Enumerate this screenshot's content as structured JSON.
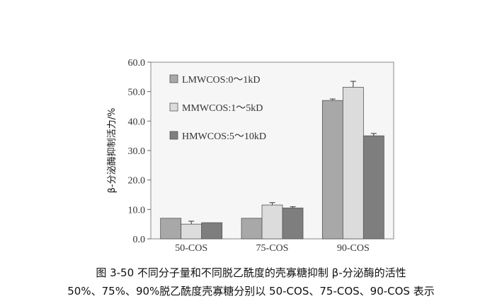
{
  "chart_data": {
    "type": "bar",
    "ylabel": "β-分泌酶抑制活力/%",
    "xlabel": "",
    "ylim": [
      0,
      60
    ],
    "yticks": [
      "0.0",
      "10.0",
      "20.0",
      "30.0",
      "40.0",
      "50.0",
      "60.0"
    ],
    "categories": [
      "50-COS",
      "75-COS",
      "90-COS"
    ],
    "series": [
      {
        "name": "LMWCOS:0～1kD",
        "values": [
          7.0,
          7.0,
          47.0
        ],
        "errors": [
          0,
          0,
          0.5
        ],
        "color": "#a8a8a8"
      },
      {
        "name": "MMWCOS:1～5kD",
        "values": [
          5.0,
          11.5,
          51.5
        ],
        "errors": [
          1.0,
          0.8,
          2.0
        ],
        "color": "#dcdcdc"
      },
      {
        "name": "HMWCOS:5～10kD",
        "values": [
          5.5,
          10.5,
          35.0
        ],
        "errors": [
          0,
          0.4,
          0.8
        ],
        "color": "#7e7e7e"
      }
    ],
    "legend_position": "top-left",
    "grid": false
  },
  "caption": {
    "line1": "图 3-50   不同分子量和不同脱乙酰度的壳寡糖抑制 β-分泌酶的活性",
    "line2": "50%、75%、90%脱乙酰度壳寡糖分别以 50-COS、75-COS、90-COS 表示"
  }
}
